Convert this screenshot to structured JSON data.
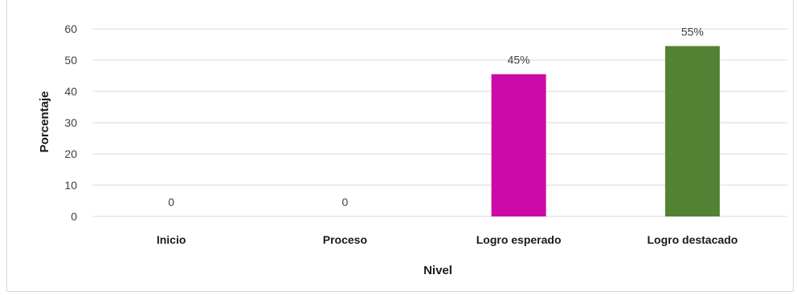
{
  "chart_data": {
    "type": "bar",
    "title": "",
    "xlabel": "Nivel",
    "ylabel": "Porcentaje",
    "categories": [
      "Inicio",
      "Proceso",
      "Logro  esperado",
      "Logro destacado"
    ],
    "values": [
      0,
      0,
      45.5,
      54.5
    ],
    "data_labels": [
      "0",
      "0",
      "45%",
      "55%"
    ],
    "bar_colors": [
      "#4472c4",
      "#4472c4",
      "#cc0aa8",
      "#548235"
    ],
    "ylim": [
      0,
      60
    ],
    "yticks": [
      "0",
      "10",
      "20",
      "30",
      "40",
      "50",
      "60"
    ],
    "ytick_values": [
      0,
      10,
      20,
      30,
      40,
      50,
      60
    ],
    "grid": true,
    "gridline_color": "#d9d9d9",
    "legend": "none"
  }
}
